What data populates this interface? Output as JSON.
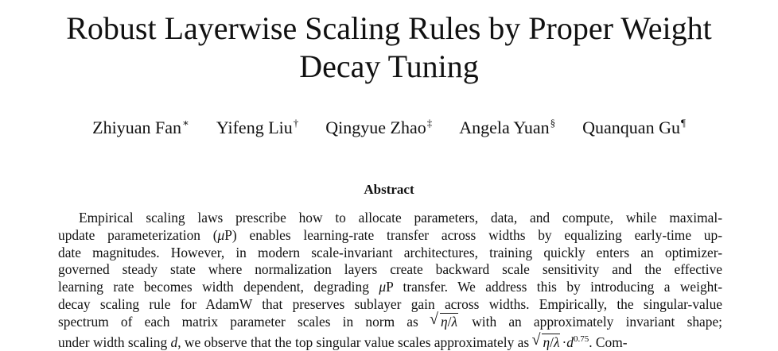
{
  "paper": {
    "title_line1": "Robust Layerwise Scaling Rules by Proper Weight",
    "title_line2": "Decay Tuning",
    "authors": [
      {
        "name": "Zhiyuan Fan",
        "mark": "∗"
      },
      {
        "name": "Yifeng Liu",
        "mark": "†"
      },
      {
        "name": "Qingyue Zhao",
        "mark": "‡"
      },
      {
        "name": "Angela Yuan",
        "mark": "§"
      },
      {
        "name": "Quanquan Gu",
        "mark": "¶"
      }
    ],
    "abstract_heading": "Abstract",
    "abstract": {
      "l1": "Empirical scaling laws prescribe how to allocate parameters, data, and compute, while maximal-",
      "l2a": "update parameterization (",
      "l2b": "P) enables learning-rate transfer across widths by equalizing early-time up-",
      "l3": "date magnitudes. However, in modern scale-invariant architectures, training quickly enters an optimizer-",
      "l4": "governed steady state where normalization layers create backward scale sensitivity and the effective",
      "l5a": "learning rate becomes width dependent, degrading ",
      "l5b": "P transfer. We address this by introducing a weight-",
      "l6": "decay scaling rule for AdamW that preserves sublayer gain across widths. Empirically, the singular-value",
      "l7a": "spectrum of each matrix parameter scales in norm as",
      "l7b": "with an approximately invariant shape;",
      "l8a": "under width scaling ",
      "l8b": ", we observe that the top singular value scales approximately as",
      "l8c": ". Com-",
      "mu": "μ",
      "eta": "η",
      "lambda": "λ",
      "d": "d",
      "exponent": "0.75"
    }
  }
}
